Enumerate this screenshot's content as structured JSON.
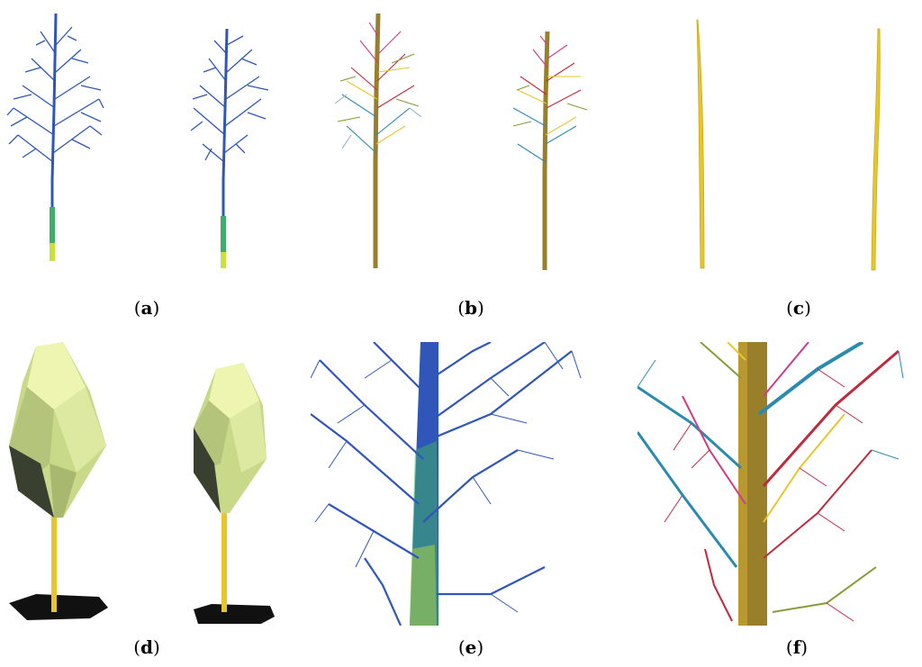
{
  "figure": {
    "panels": [
      {
        "id": "a",
        "label_open": "(",
        "label_letter": "a",
        "label_close": ")",
        "content": "point-cloud-trees"
      },
      {
        "id": "b",
        "label_open": "(",
        "label_letter": "b",
        "label_close": ")",
        "content": "segmented-branch-trees"
      },
      {
        "id": "c",
        "label_open": "(",
        "label_letter": "c",
        "label_close": ")",
        "content": "stem-models"
      },
      {
        "id": "d",
        "label_open": "(",
        "label_letter": "d",
        "label_close": ")",
        "content": "crown-hull-models"
      },
      {
        "id": "e",
        "label_open": "(",
        "label_letter": "e",
        "label_close": ")",
        "content": "point-cloud-closeup"
      },
      {
        "id": "f",
        "label_open": "(",
        "label_letter": "f",
        "label_close": ")",
        "content": "segmented-closeup"
      }
    ]
  },
  "colors": {
    "point_blue": "#2f56b8",
    "point_green": "#3fae6a",
    "point_yellow": "#c8e23a",
    "trunk_brown": "#9a7f2a",
    "stem_yellow": "#e8c62a",
    "hull_light": "#eef5b0",
    "hull_mid": "#c9d98a",
    "hull_dark": "#3a4030",
    "shadow": "#111111",
    "seg_red": "#c02a3a",
    "seg_magenta": "#d23a8a",
    "seg_cyan": "#2a8ab0",
    "seg_olive": "#8a9a3a"
  }
}
